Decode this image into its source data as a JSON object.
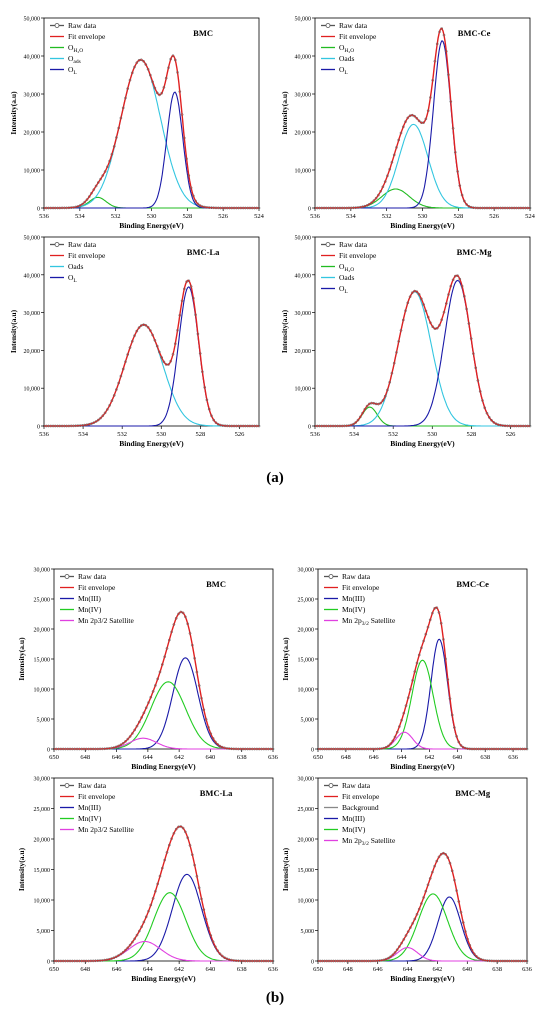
{
  "panel_labels": {
    "a": "(a)",
    "b": "(b)"
  },
  "legend_labels": {
    "raw": "Raw data",
    "fit": "Fit envelope",
    "h2o": [
      "O",
      "H₂O"
    ],
    "oads_sub": [
      "O",
      "ads"
    ],
    "oads": "Oads",
    "ol": [
      "O",
      "L"
    ],
    "mn3": "Mn(III)",
    "mn4": "Mn(IV)",
    "sat": "Mn 2p3/2 Satellite",
    "sat_sub": [
      "Mn 2p",
      "3/2",
      " Satellite"
    ],
    "bg": "Background"
  },
  "chart_data": [
    {
      "id": "a1",
      "type": "line",
      "title": "BMC",
      "xlabel": "Binding Energy(eV)",
      "ylabel": "Intensity(a.u)",
      "xlim": [
        536,
        524
      ],
      "ylim": [
        0,
        50000
      ],
      "xticks": [
        "536",
        "534",
        "532",
        "530",
        "528",
        "526",
        "524"
      ],
      "yticks": [
        "0",
        "10,000",
        "20,000",
        "30,000",
        "40,000",
        "50,000"
      ],
      "legend": [
        "raw",
        "fit",
        "h2o",
        "oads_sub",
        "ol"
      ],
      "peaks": [
        {
          "name": "O H2O",
          "color": "#22bb22",
          "center": 533.0,
          "height": 2800,
          "fwhm": 1.1
        },
        {
          "name": "Oads",
          "color": "#33c6e0",
          "center": 530.6,
          "height": 39000,
          "fwhm": 2.6
        },
        {
          "name": "OL",
          "color": "#1a1aa8",
          "center": 528.7,
          "height": 30500,
          "fwhm": 1.05
        }
      ]
    },
    {
      "id": "a2",
      "type": "line",
      "title": "BMC-Ce",
      "xlabel": "Binding Energy(eV)",
      "ylabel": "Intensity(a.u)",
      "xlim": [
        536,
        524
      ],
      "ylim": [
        0,
        50000
      ],
      "xticks": [
        "536",
        "534",
        "532",
        "530",
        "528",
        "526",
        "524"
      ],
      "yticks": [
        "0",
        "10,000",
        "20,000",
        "30,000",
        "40,000",
        "50,000"
      ],
      "legend": [
        "raw",
        "fit",
        "h2o",
        "oads",
        "ol"
      ],
      "peaks": [
        {
          "name": "O H2O",
          "color": "#22bb22",
          "center": 531.5,
          "height": 5000,
          "fwhm": 1.8
        },
        {
          "name": "Oads",
          "color": "#33c6e0",
          "center": 530.5,
          "height": 22000,
          "fwhm": 1.9
        },
        {
          "name": "OL",
          "color": "#1a1aa8",
          "center": 528.9,
          "height": 44000,
          "fwhm": 1.15
        }
      ]
    },
    {
      "id": "a3",
      "type": "line",
      "title": "BMC-La",
      "xlabel": "Binding Energy(eV)",
      "ylabel": "Intensity(a.u)",
      "xlim": [
        536,
        525
      ],
      "ylim": [
        0,
        50000
      ],
      "xticks": [
        "536",
        "534",
        "532",
        "530",
        "528",
        "526"
      ],
      "yticks": [
        "0",
        "10,000",
        "20,000",
        "30,000",
        "40,000",
        "50,000"
      ],
      "legend": [
        "raw",
        "fit",
        "oads",
        "ol"
      ],
      "peaks": [
        {
          "name": "Oads",
          "color": "#33c6e0",
          "center": 530.9,
          "height": 26800,
          "fwhm": 2.3
        },
        {
          "name": "OL",
          "color": "#1a1aa8",
          "center": 528.6,
          "height": 36800,
          "fwhm": 1.2
        }
      ]
    },
    {
      "id": "a4",
      "type": "line",
      "title": "BMC-Mg",
      "xlabel": "Binding Energy(eV)",
      "ylabel": "Intensity(a.u)",
      "xlim": [
        536,
        525
      ],
      "ylim": [
        0,
        50000
      ],
      "xticks": [
        "536",
        "534",
        "532",
        "530",
        "528",
        "526"
      ],
      "yticks": [
        "0",
        "10,000",
        "20,000",
        "30,000",
        "40,000",
        "50,000"
      ],
      "legend": [
        "raw",
        "fit",
        "h2o",
        "oads",
        "ol"
      ],
      "peaks": [
        {
          "name": "O H2O",
          "color": "#22bb22",
          "center": 533.2,
          "height": 5000,
          "fwhm": 0.9
        },
        {
          "name": "Oads",
          "color": "#33c6e0",
          "center": 530.9,
          "height": 35500,
          "fwhm": 2.0
        },
        {
          "name": "OL",
          "color": "#1a1aa8",
          "center": 528.7,
          "height": 38500,
          "fwhm": 1.6
        }
      ]
    },
    {
      "id": "b1",
      "type": "line",
      "title": "BMC",
      "xlabel": "Binding Energy(eV)",
      "ylabel": "Intensity(a.u)",
      "xlim": [
        650,
        636
      ],
      "ylim": [
        0,
        30000
      ],
      "xticks": [
        "650",
        "648",
        "646",
        "644",
        "642",
        "640",
        "638",
        "636"
      ],
      "yticks": [
        "0",
        "5,000",
        "10,000",
        "15,000",
        "20,000",
        "25,000",
        "30,000"
      ],
      "legend": [
        "raw",
        "fit",
        "mn3",
        "mn4",
        "sat"
      ],
      "peaks": [
        {
          "name": "Mn(III)",
          "color": "#1a1aa8",
          "center": 641.6,
          "height": 15200,
          "fwhm": 1.9
        },
        {
          "name": "Mn(IV)",
          "color": "#22cc22",
          "center": 642.7,
          "height": 11200,
          "fwhm": 2.6
        },
        {
          "name": "Satellite",
          "color": "#e040e0",
          "center": 644.3,
          "height": 1800,
          "fwhm": 2.0
        }
      ]
    },
    {
      "id": "b2",
      "type": "line",
      "title": "BMC-Ce",
      "xlabel": "Binding Energy(eV)",
      "ylabel": "Intensity(a.u)",
      "xlim": [
        650,
        635
      ],
      "ylim": [
        0,
        30000
      ],
      "xticks": [
        "650",
        "648",
        "646",
        "644",
        "642",
        "640",
        "638",
        "636"
      ],
      "yticks": [
        "0",
        "5,000",
        "10,000",
        "15,000",
        "20,000",
        "25,000",
        "30,000"
      ],
      "legend": [
        "raw",
        "fit",
        "mn3",
        "mn4",
        "sat_sub"
      ],
      "peaks": [
        {
          "name": "Mn(III)",
          "color": "#1a1aa8",
          "center": 641.3,
          "height": 18300,
          "fwhm": 1.4
        },
        {
          "name": "Mn(IV)",
          "color": "#22cc22",
          "center": 642.5,
          "height": 14800,
          "fwhm": 1.8
        },
        {
          "name": "Satellite",
          "color": "#e040e0",
          "center": 643.8,
          "height": 2800,
          "fwhm": 1.4
        }
      ]
    },
    {
      "id": "b3",
      "type": "line",
      "title": "BMC-La",
      "xlabel": "Binding Energy(eV)",
      "ylabel": "Intensity(a.u)",
      "xlim": [
        650,
        636
      ],
      "ylim": [
        0,
        30000
      ],
      "xticks": [
        "650",
        "648",
        "646",
        "644",
        "642",
        "640",
        "638",
        "636"
      ],
      "yticks": [
        "0",
        "5,000",
        "10,000",
        "15,000",
        "20,000",
        "25,000",
        "30,000"
      ],
      "legend": [
        "raw",
        "fit",
        "mn3",
        "mn4",
        "sat"
      ],
      "peaks": [
        {
          "name": "Mn(III)",
          "color": "#1a1aa8",
          "center": 641.5,
          "height": 14200,
          "fwhm": 2.2
        },
        {
          "name": "Mn(IV)",
          "color": "#22cc22",
          "center": 642.6,
          "height": 11200,
          "fwhm": 2.4
        },
        {
          "name": "Satellite",
          "color": "#e040e0",
          "center": 644.2,
          "height": 3200,
          "fwhm": 2.4
        }
      ]
    },
    {
      "id": "b4",
      "type": "line",
      "title": "BMC-Mg",
      "xlabel": "Binding Energy(eV)",
      "ylabel": "Intensity(a.u)",
      "xlim": [
        650,
        636
      ],
      "ylim": [
        0,
        30000
      ],
      "xticks": [
        "650",
        "648",
        "646",
        "644",
        "642",
        "640",
        "638",
        "636"
      ],
      "yticks": [
        "0",
        "5,000",
        "10,000",
        "15,000",
        "20,000",
        "25,000",
        "30,000"
      ],
      "legend": [
        "raw",
        "fit",
        "bg",
        "mn3",
        "mn4",
        "sat_sub"
      ],
      "peaks": [
        {
          "name": "Mn(III)",
          "color": "#1a1aa8",
          "center": 641.2,
          "height": 10500,
          "fwhm": 1.8
        },
        {
          "name": "Mn(IV)",
          "color": "#22cc22",
          "center": 642.3,
          "height": 11000,
          "fwhm": 2.3
        },
        {
          "name": "Satellite",
          "color": "#e040e0",
          "center": 644.0,
          "height": 2200,
          "fwhm": 1.6
        }
      ]
    }
  ]
}
